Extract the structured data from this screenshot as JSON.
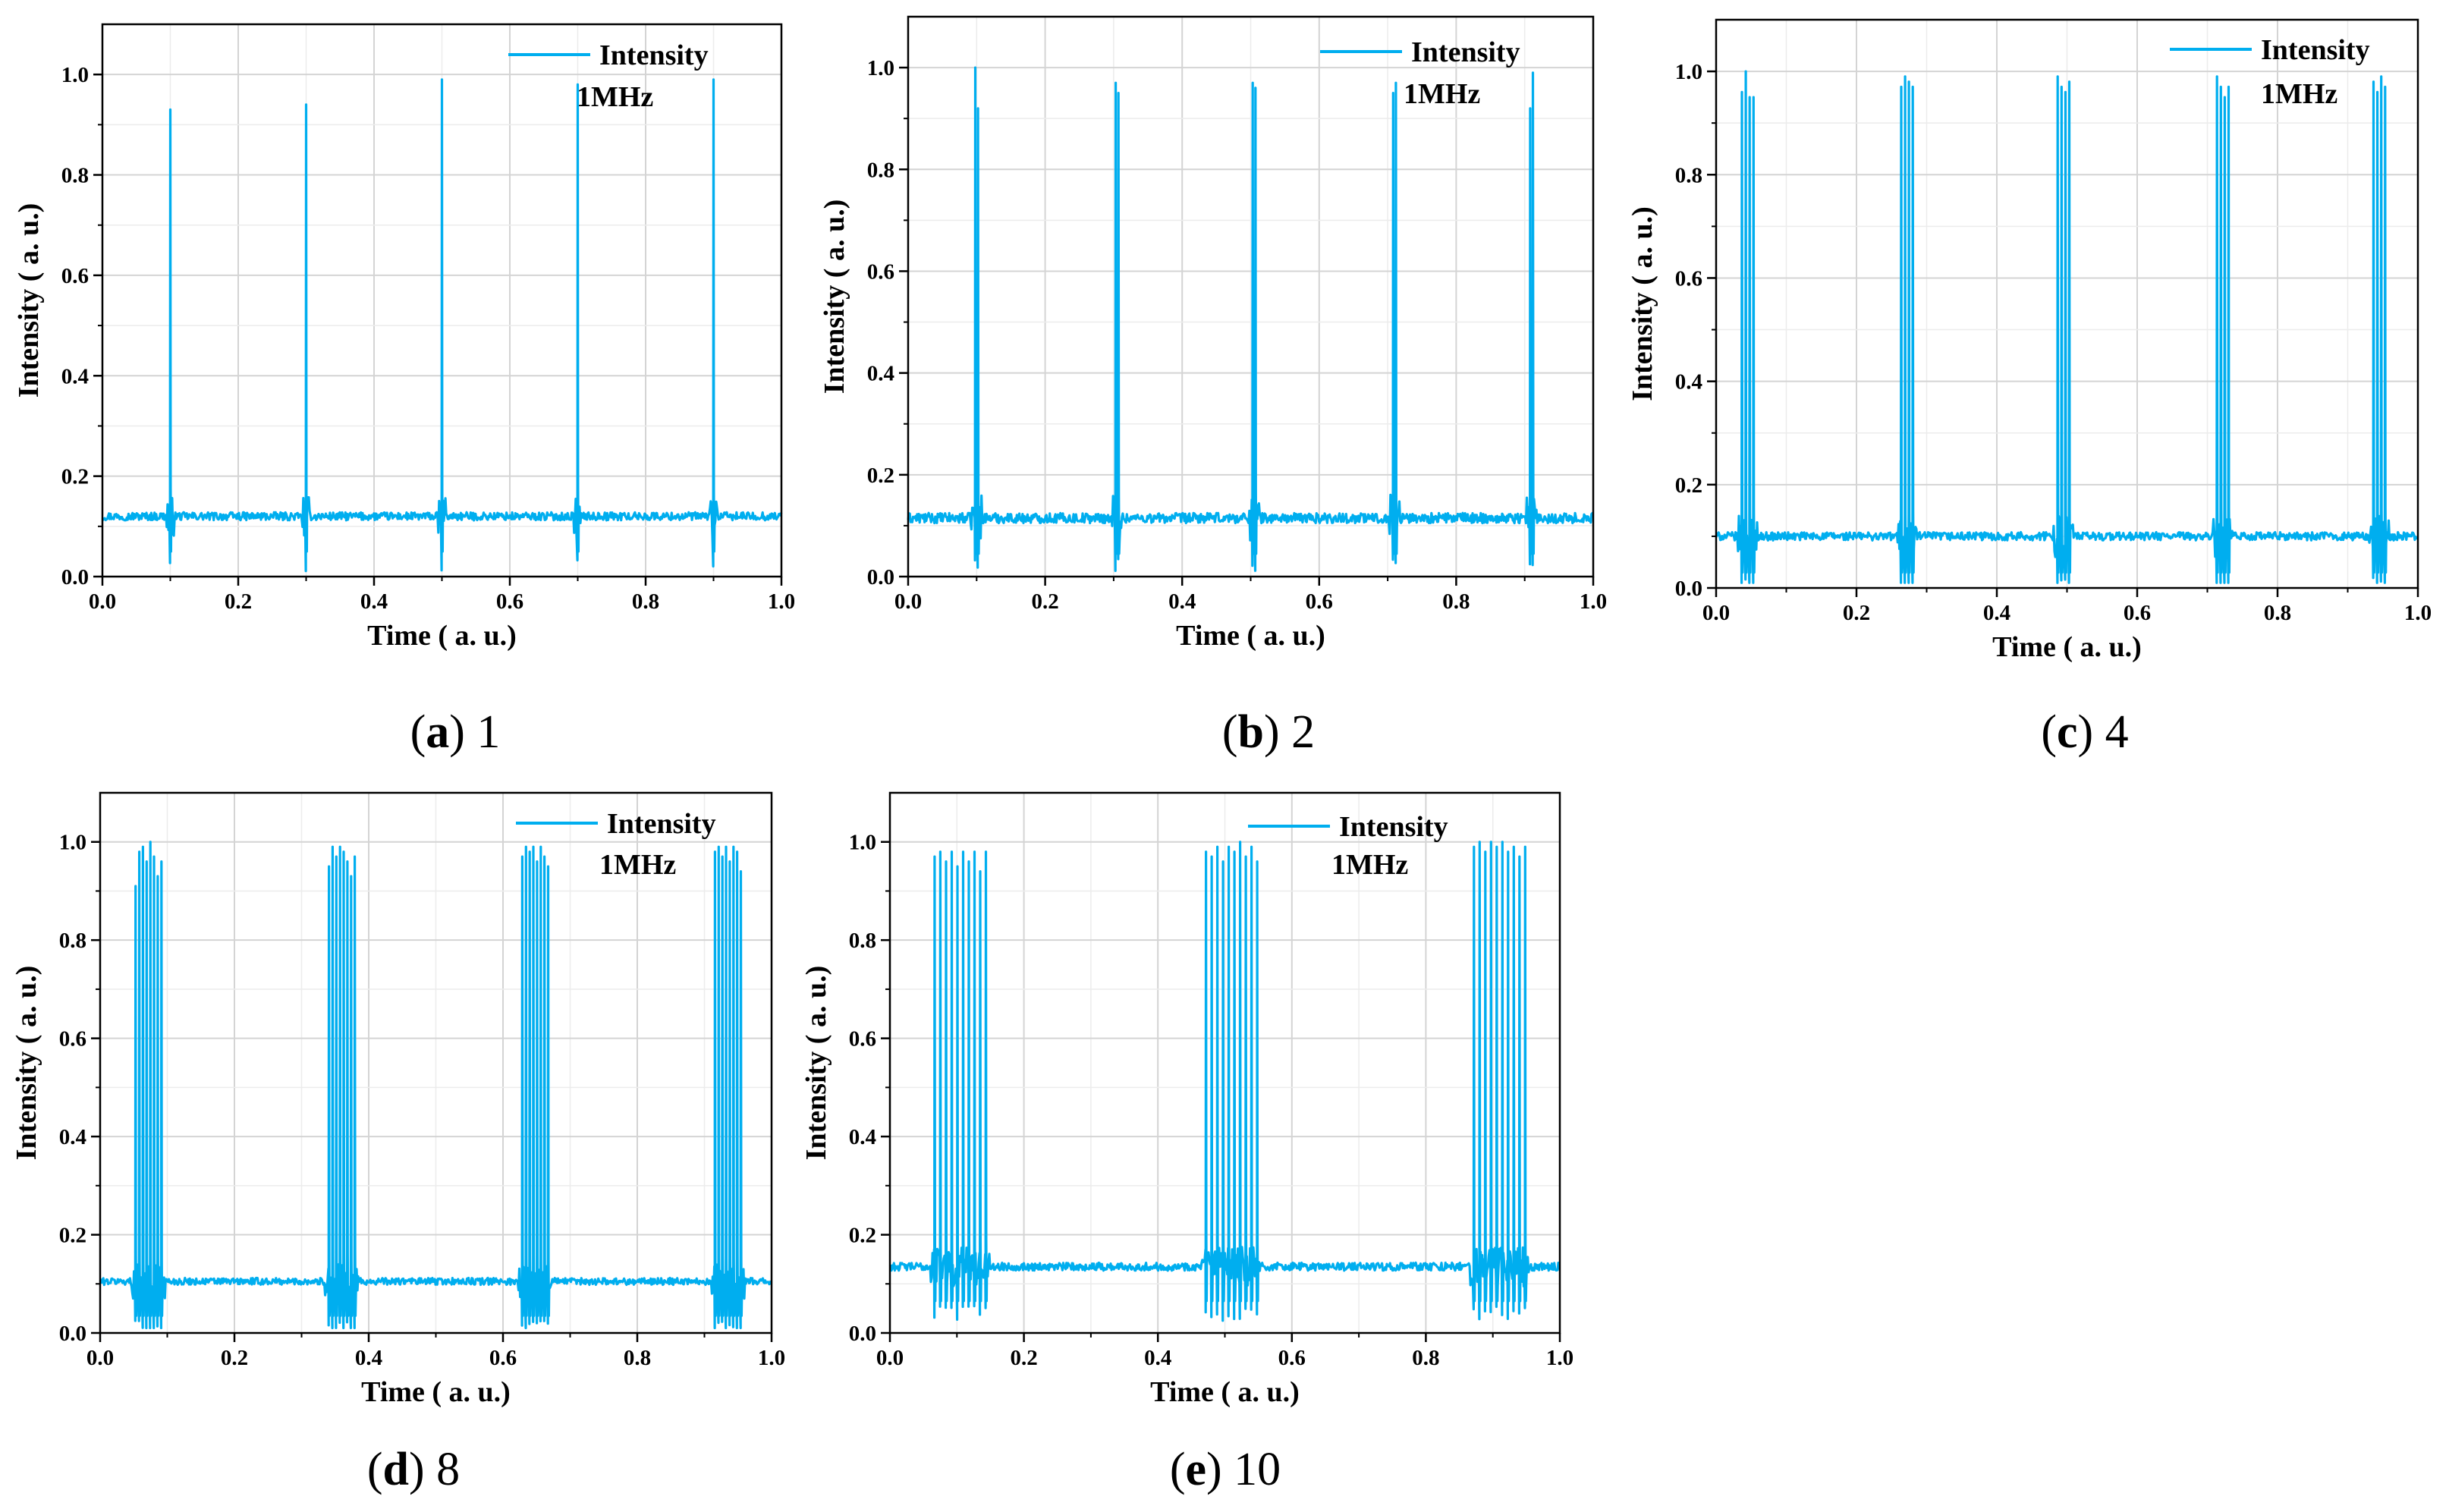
{
  "line_color": "#00aeef",
  "chart_data": [
    {
      "id": "a",
      "type": "line",
      "title": "",
      "xlabel": "Time ( a. u.)",
      "ylabel": "Intensity ( a. u.)",
      "xlim": [
        0.0,
        1.0
      ],
      "ylim": [
        0.0,
        1.1
      ],
      "xticks": [
        "0.0",
        "0.2",
        "0.4",
        "0.6",
        "0.8",
        "1.0"
      ],
      "yticks": [
        "0.0",
        "0.2",
        "0.4",
        "0.6",
        "0.8",
        "1.0"
      ],
      "legend": "Intensity",
      "annotation": "1MHz",
      "baseline": 0.12,
      "noise": 0.008,
      "burst_centers": [
        0.1,
        0.3,
        0.5,
        0.7,
        0.9
      ],
      "pulses_per_burst": 1,
      "pulse_spacing": 0.0,
      "peak_values": [
        [
          0.93
        ],
        [
          0.94
        ],
        [
          0.99
        ],
        [
          0.98
        ],
        [
          0.99
        ]
      ],
      "caption": {
        "letter": "a",
        "text": " 1"
      }
    },
    {
      "id": "b",
      "type": "line",
      "title": "",
      "xlabel": "Time ( a. u.)",
      "ylabel": "Intensity ( a. u.)",
      "xlim": [
        0.0,
        1.0
      ],
      "ylim": [
        0.0,
        1.1
      ],
      "xticks": [
        "0.0",
        "0.2",
        "0.4",
        "0.6",
        "0.8",
        "1.0"
      ],
      "yticks": [
        "0.0",
        "0.2",
        "0.4",
        "0.6",
        "0.8",
        "1.0"
      ],
      "legend": "Intensity",
      "annotation": "1MHz",
      "baseline": 0.115,
      "noise": 0.01,
      "burst_centers": [
        0.1,
        0.305,
        0.505,
        0.71,
        0.91
      ],
      "pulses_per_burst": 2,
      "pulse_spacing": 0.004,
      "peak_values": [
        [
          1.0,
          0.92
        ],
        [
          0.97,
          0.95
        ],
        [
          0.97,
          0.96
        ],
        [
          0.95,
          0.97
        ],
        [
          0.92,
          0.99
        ]
      ],
      "caption": {
        "letter": "b",
        "text": " 2"
      }
    },
    {
      "id": "c",
      "type": "line",
      "title": "",
      "xlabel": "Time ( a. u.)",
      "ylabel": "Intensity ( a. u.)",
      "xlim": [
        0.0,
        1.0
      ],
      "ylim": [
        0.0,
        1.1
      ],
      "xticks": [
        "0.0",
        "0.2",
        "0.4",
        "0.6",
        "0.8",
        "1.0"
      ],
      "yticks": [
        "0.0",
        "0.2",
        "0.4",
        "0.6",
        "0.8",
        "1.0"
      ],
      "legend": "Intensity",
      "annotation": "1MHz",
      "baseline": 0.1,
      "noise": 0.008,
      "burst_centers": [
        0.045,
        0.272,
        0.495,
        0.722,
        0.945
      ],
      "pulses_per_burst": 4,
      "pulse_spacing": 0.0055,
      "peak_values": [
        [
          0.96,
          1.0,
          0.95,
          0.95
        ],
        [
          0.97,
          0.99,
          0.98,
          0.97
        ],
        [
          0.99,
          0.97,
          0.96,
          0.98
        ],
        [
          0.99,
          0.97,
          0.95,
          0.97
        ],
        [
          0.98,
          0.96,
          0.99,
          0.97
        ]
      ],
      "caption": {
        "letter": "c",
        "text": " 4"
      }
    },
    {
      "id": "d",
      "type": "line",
      "title": "",
      "xlabel": "Time ( a. u.)",
      "ylabel": "Intensity ( a. u.)",
      "xlim": [
        0.0,
        1.0
      ],
      "ylim": [
        0.0,
        1.1
      ],
      "xticks": [
        "0.0",
        "0.2",
        "0.4",
        "0.6",
        "0.8",
        "1.0"
      ],
      "yticks": [
        "0.0",
        "0.2",
        "0.4",
        "0.6",
        "0.8",
        "1.0"
      ],
      "legend": "Intensity",
      "annotation": "1MHz",
      "baseline": 0.105,
      "noise": 0.007,
      "burst_centers": [
        0.072,
        0.36,
        0.648,
        0.935
      ],
      "pulses_per_burst": 8,
      "pulse_spacing": 0.0055,
      "peak_values": [
        [
          0.91,
          0.98,
          0.99,
          0.96,
          1.0,
          0.97,
          0.93,
          0.96
        ],
        [
          0.95,
          0.99,
          0.97,
          0.99,
          0.98,
          0.96,
          0.93,
          0.97
        ],
        [
          0.97,
          0.99,
          0.98,
          0.99,
          0.96,
          0.99,
          0.97,
          0.95
        ],
        [
          0.98,
          0.99,
          0.97,
          0.99,
          0.96,
          0.99,
          0.98,
          0.94
        ]
      ],
      "caption": {
        "letter": "d",
        "text": " 8"
      }
    },
    {
      "id": "e",
      "type": "line",
      "title": "",
      "xlabel": "Time ( a. u.)",
      "ylabel": "Intensity ( a. u.)",
      "xlim": [
        0.0,
        1.0
      ],
      "ylim": [
        0.0,
        1.1
      ],
      "xticks": [
        "0.0",
        "0.2",
        "0.4",
        "0.6",
        "0.8",
        "1.0"
      ],
      "yticks": [
        "0.0",
        "0.2",
        "0.4",
        "0.6",
        "0.8",
        "1.0"
      ],
      "legend": "Intensity",
      "annotation": "1MHz",
      "baseline": 0.135,
      "noise": 0.008,
      "burst_centers": [
        0.105,
        0.51,
        0.91
      ],
      "pulses_per_burst": 10,
      "pulse_spacing": 0.0085,
      "peak_values": [
        [
          0.97,
          0.98,
          0.96,
          0.98,
          0.95,
          0.98,
          0.96,
          0.98,
          0.94,
          0.98
        ],
        [
          0.98,
          0.97,
          0.99,
          0.96,
          0.99,
          0.98,
          1.0,
          0.97,
          0.99,
          0.96
        ],
        [
          0.99,
          1.0,
          0.98,
          1.0,
          0.99,
          1.0,
          0.98,
          0.99,
          0.97,
          0.99
        ]
      ],
      "caption": {
        "letter": "e",
        "text": " 10"
      }
    }
  ]
}
